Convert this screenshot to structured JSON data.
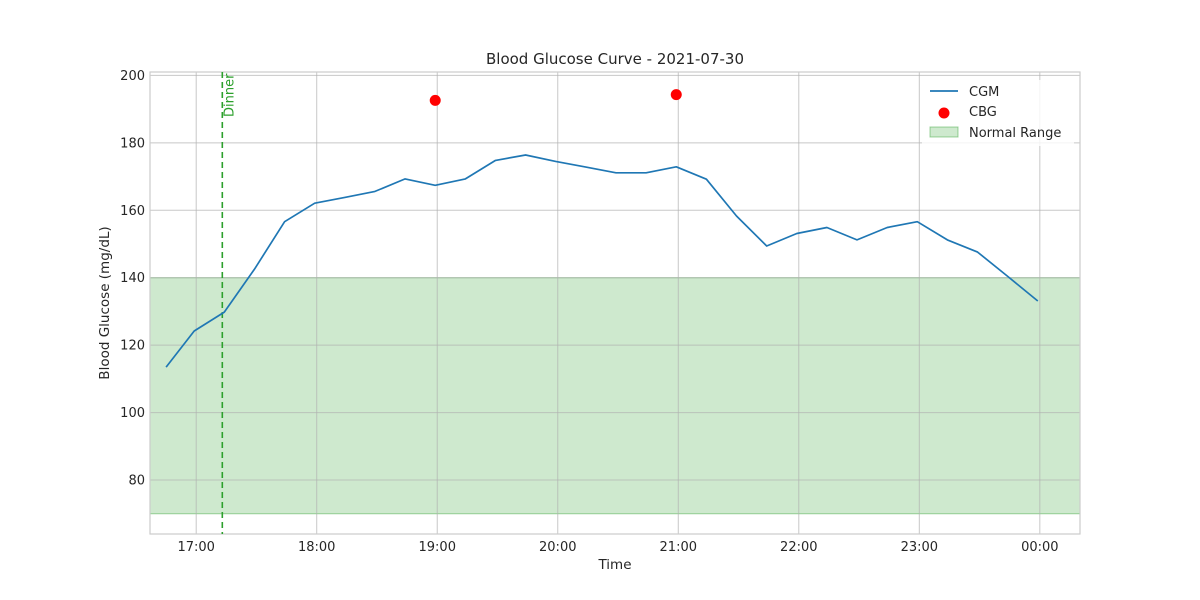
{
  "chart_data": {
    "type": "line",
    "title": "Blood Glucose Curve - 2021-07-30",
    "xlabel": "Time",
    "ylabel": "Blood Glucose (mg/dL)",
    "x_tick_labels": [
      "17:00",
      "18:00",
      "19:00",
      "20:00",
      "21:00",
      "22:00",
      "23:00",
      "00:00"
    ],
    "y_ticks": [
      80,
      100,
      120,
      140,
      160,
      180,
      200
    ],
    "xlim": [
      "16:37",
      "00:20"
    ],
    "ylim": [
      64,
      201
    ],
    "grid": true,
    "legend_position": "top-right",
    "cgm_series": {
      "name": "CGM",
      "color": "#1f77b4",
      "x": [
        "16:45",
        "16:59",
        "17:14",
        "17:29",
        "17:44",
        "17:59",
        "18:14",
        "18:29",
        "18:44",
        "18:59",
        "19:14",
        "19:29",
        "19:44",
        "19:59",
        "20:14",
        "20:29",
        "20:44",
        "20:59",
        "21:14",
        "21:29",
        "21:44",
        "21:59",
        "22:14",
        "22:29",
        "22:44",
        "22:59",
        "23:14",
        "23:29",
        "23:44",
        "23:59"
      ],
      "y": [
        113.5,
        124.2,
        129.8,
        142.5,
        156.6,
        162.1,
        163.8,
        165.6,
        169.3,
        167.4,
        169.3,
        174.8,
        176.4,
        174.5,
        172.8,
        171.1,
        171.1,
        172.9,
        169.2,
        158.3,
        149.4,
        153.1,
        154.9,
        151.2,
        154.9,
        156.6,
        151.2,
        147.6,
        140.4,
        133.1
      ]
    },
    "cbg_series": {
      "name": "CBG",
      "color": "#ff0000",
      "x": [
        "18:59",
        "20:59"
      ],
      "y": [
        192.6,
        194.3
      ]
    },
    "normal_range": {
      "name": "Normal Range",
      "low": 70,
      "high": 140,
      "color": "#2ca02c"
    },
    "annotations": [
      {
        "label": "Dinner",
        "x": "17:13",
        "color": "#2ca02c"
      }
    ]
  }
}
